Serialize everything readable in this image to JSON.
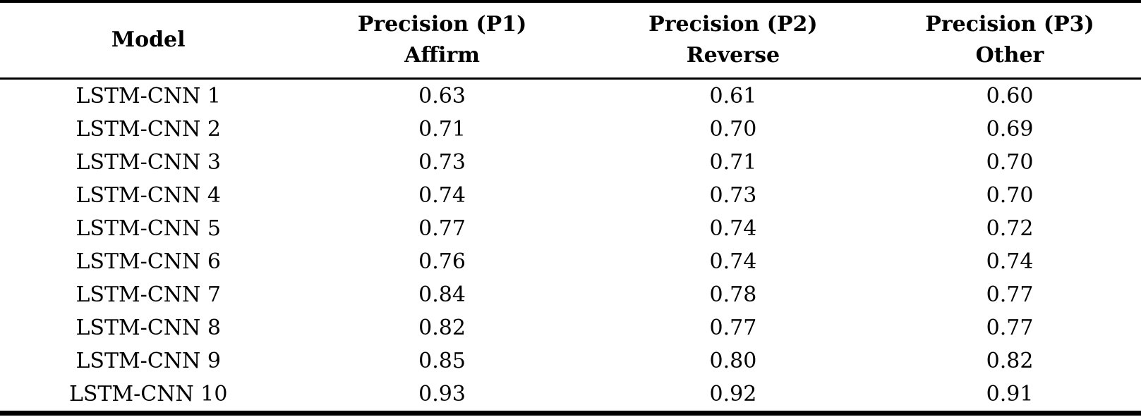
{
  "table": {
    "headers": [
      {
        "line1": "Model",
        "line2": ""
      },
      {
        "line1": "Precision (P1)",
        "line2": "Affirm"
      },
      {
        "line1": "Precision (P2)",
        "line2": "Reverse"
      },
      {
        "line1": "Precision (P3)",
        "line2": "Other"
      }
    ],
    "rows": [
      [
        "LSTM-CNN 1",
        "0.63",
        "0.61",
        "0.60"
      ],
      [
        "LSTM-CNN 2",
        "0.71",
        "0.70",
        "0.69"
      ],
      [
        "LSTM-CNN 3",
        "0.73",
        "0.71",
        "0.70"
      ],
      [
        "LSTM-CNN 4",
        "0.74",
        "0.73",
        "0.70"
      ],
      [
        "LSTM-CNN 5",
        "0.77",
        "0.74",
        "0.72"
      ],
      [
        "LSTM-CNN 6",
        "0.76",
        "0.74",
        "0.74"
      ],
      [
        "LSTM-CNN 7",
        "0.84",
        "0.78",
        "0.77"
      ],
      [
        "LSTM-CNN 8",
        "0.82",
        "0.77",
        "0.77"
      ],
      [
        "LSTM-CNN 9",
        "0.85",
        "0.80",
        "0.82"
      ],
      [
        "LSTM-CNN 10",
        "0.93",
        "0.92",
        "0.91"
      ]
    ],
    "colors": {
      "text": "#000000",
      "background": "#ffffff",
      "rule": "#000000"
    }
  },
  "chart_data": {
    "type": "table",
    "title": "",
    "categories": [
      "LSTM-CNN 1",
      "LSTM-CNN 2",
      "LSTM-CNN 3",
      "LSTM-CNN 4",
      "LSTM-CNN 5",
      "LSTM-CNN 6",
      "LSTM-CNN 7",
      "LSTM-CNN 8",
      "LSTM-CNN 9",
      "LSTM-CNN 10"
    ],
    "series": [
      {
        "name": "Precision (P1) Affirm",
        "values": [
          0.63,
          0.71,
          0.73,
          0.74,
          0.77,
          0.76,
          0.84,
          0.82,
          0.85,
          0.93
        ]
      },
      {
        "name": "Precision (P2) Reverse",
        "values": [
          0.61,
          0.7,
          0.71,
          0.73,
          0.74,
          0.74,
          0.78,
          0.77,
          0.8,
          0.92
        ]
      },
      {
        "name": "Precision (P3) Other",
        "values": [
          0.6,
          0.69,
          0.7,
          0.7,
          0.72,
          0.74,
          0.77,
          0.77,
          0.82,
          0.91
        ]
      }
    ]
  }
}
